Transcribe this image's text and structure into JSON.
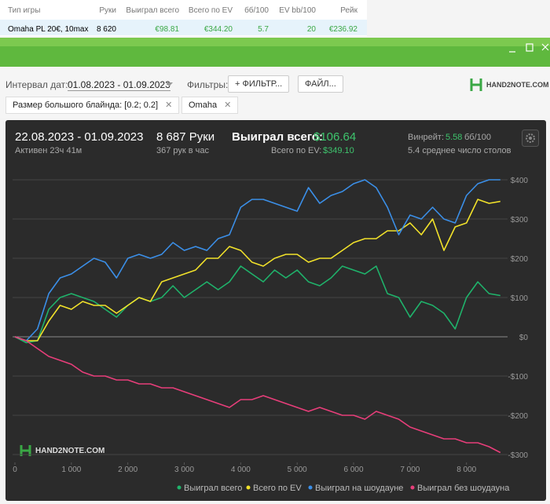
{
  "table": {
    "columns": [
      "Тип игры",
      "Руки",
      "Выиграл всего",
      "Всего по EV",
      "бб/100",
      "EV bb/100",
      "Рейк"
    ],
    "rows": [
      [
        "Omaha PL 20€, 10max",
        "8 620",
        "€98.81",
        "€344.20",
        "5.7",
        "20",
        "€236.92"
      ]
    ]
  },
  "toolbar": {
    "date_label": "Интервал дат:",
    "date_range": "01.08.2023 - 01.09.2023",
    "filters_label": "Фильтры:",
    "filter_button": "ФИЛЬТР...",
    "file_button": "ФАЙЛ...",
    "logo": "HAND2NOTE.COM"
  },
  "tags": [
    "Размер большого блайнда: [0.2; 0.2]",
    "Omaha"
  ],
  "summary": {
    "period": "22.08.2023 - 01.09.2023",
    "active": "Активен 23ч 41м",
    "hands": "8 687 Руки",
    "hands_per_hour": "367 рук в час",
    "won_label": "Выиграл всего:",
    "won": "$106.64",
    "ev_label": "Всего по EV:",
    "ev": "$349.10",
    "winrate_label": "Винрейт:",
    "winrate": "5.58",
    "winrate_unit": "бб/100",
    "tables": "5.4 среднее число столов",
    "watermark": "HAND2NOTE.COM"
  },
  "chart_data": {
    "type": "line",
    "grid": true,
    "x": [
      0,
      200,
      400,
      600,
      800,
      1000,
      1200,
      1400,
      1600,
      1800,
      2000,
      2200,
      2400,
      2600,
      2800,
      3000,
      3200,
      3400,
      3600,
      3800,
      4000,
      4200,
      4400,
      4600,
      4800,
      5000,
      5200,
      5400,
      5600,
      5800,
      6000,
      6200,
      6400,
      6600,
      6800,
      7000,
      7200,
      7400,
      7600,
      7800,
      8000,
      8200,
      8400,
      8600
    ],
    "xlim": [
      0,
      8700
    ],
    "xticks": [
      0,
      {
        "value": 1000,
        "label": "1 000"
      },
      {
        "value": 2000,
        "label": "2 000"
      },
      {
        "value": 3000,
        "label": "3 000"
      },
      {
        "value": 4000,
        "label": "4 000"
      },
      {
        "value": 5000,
        "label": "5 000"
      },
      {
        "value": 6000,
        "label": "6 000"
      },
      {
        "value": 7000,
        "label": "7 000"
      },
      {
        "value": 8000,
        "label": "8 000"
      }
    ],
    "ylim": [
      -320,
      440
    ],
    "yticks": [
      {
        "value": -300,
        "label": "-$300"
      },
      {
        "value": -200,
        "label": "-$200"
      },
      {
        "value": -100,
        "label": "-$100"
      },
      {
        "value": 0,
        "label": "$0"
      },
      {
        "value": 100,
        "label": "$100"
      },
      {
        "value": 200,
        "label": "$200"
      },
      {
        "value": 300,
        "label": "$300"
      },
      {
        "value": 400,
        "label": "$400"
      }
    ],
    "series": [
      {
        "name": "Выиграл всего",
        "color": "#1fb36b",
        "values": [
          0,
          -15,
          -10,
          70,
          100,
          110,
          100,
          90,
          70,
          50,
          80,
          100,
          90,
          100,
          130,
          100,
          120,
          140,
          120,
          140,
          180,
          160,
          140,
          170,
          150,
          170,
          140,
          130,
          150,
          180,
          170,
          160,
          180,
          110,
          100,
          50,
          90,
          80,
          60,
          20,
          100,
          140,
          110,
          105
        ]
      },
      {
        "name": "Всего по EV",
        "color": "#f2e22a",
        "values": [
          0,
          -10,
          -10,
          40,
          80,
          70,
          90,
          80,
          80,
          60,
          80,
          100,
          90,
          140,
          150,
          160,
          170,
          200,
          200,
          230,
          220,
          190,
          180,
          200,
          210,
          210,
          190,
          200,
          200,
          220,
          240,
          250,
          250,
          270,
          270,
          290,
          260,
          300,
          220,
          280,
          290,
          350,
          340,
          345
        ]
      },
      {
        "name": "Выиграл на шоудауне",
        "color": "#3b8fe8",
        "values": [
          0,
          -10,
          20,
          110,
          150,
          160,
          180,
          200,
          190,
          150,
          200,
          210,
          200,
          210,
          240,
          220,
          230,
          220,
          250,
          260,
          330,
          350,
          350,
          340,
          330,
          320,
          380,
          340,
          360,
          370,
          390,
          400,
          380,
          330,
          260,
          310,
          300,
          330,
          300,
          290,
          360,
          390,
          400,
          400
        ]
      },
      {
        "name": "Выиграл без шоудауна",
        "color": "#e83e7a",
        "values": [
          0,
          -10,
          -30,
          -50,
          -60,
          -70,
          -90,
          -100,
          -100,
          -110,
          -110,
          -120,
          -120,
          -130,
          -130,
          -140,
          -150,
          -160,
          -170,
          -180,
          -160,
          -160,
          -150,
          -160,
          -170,
          -180,
          -190,
          -180,
          -190,
          -200,
          -200,
          -210,
          -190,
          -200,
          -210,
          -230,
          -240,
          -250,
          -260,
          -260,
          -270,
          -270,
          -280,
          -295
        ]
      }
    ]
  }
}
